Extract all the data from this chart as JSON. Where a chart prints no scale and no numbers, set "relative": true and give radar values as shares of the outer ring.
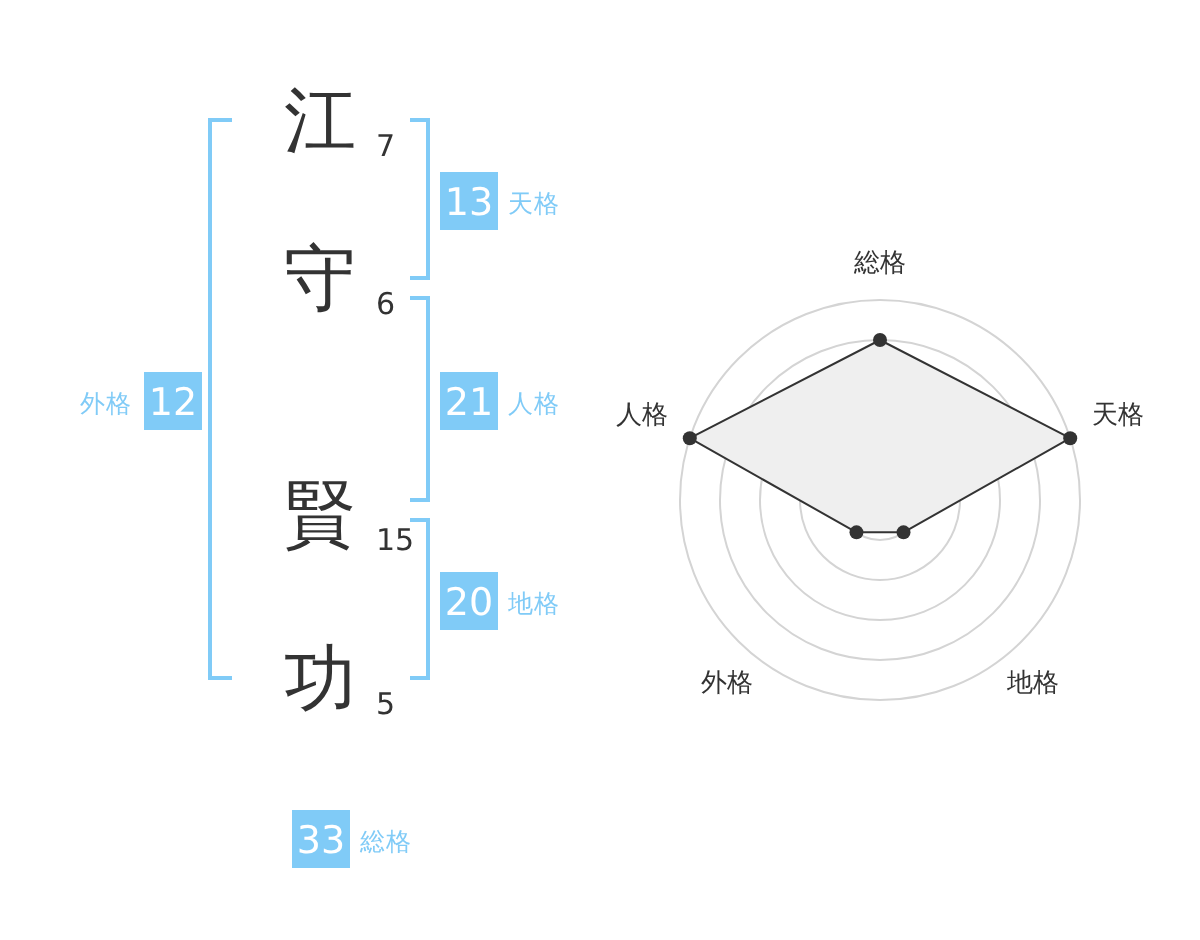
{
  "chart_data": [
    {
      "type": "other",
      "categories": [
        "江",
        "守",
        "賢",
        "功"
      ],
      "values": [
        7,
        6,
        15,
        5
      ],
      "data_labels": true
    },
    {
      "type": "other",
      "categories": [
        "天格",
        "人格",
        "地格",
        "外格",
        "総格"
      ],
      "values": [
        13,
        21,
        20,
        12,
        33
      ],
      "data_labels": true,
      "color": "#80cbf7"
    },
    {
      "type": "radar",
      "categories": [
        "総格",
        "天格",
        "地格",
        "外格",
        "人格"
      ],
      "relative": true,
      "grid": true,
      "marker": "circle",
      "series": [
        {
          "color": "#333333",
          "values": [
            0.8,
            1,
            0.2,
            0.2,
            1
          ]
        }
      ]
    }
  ]
}
